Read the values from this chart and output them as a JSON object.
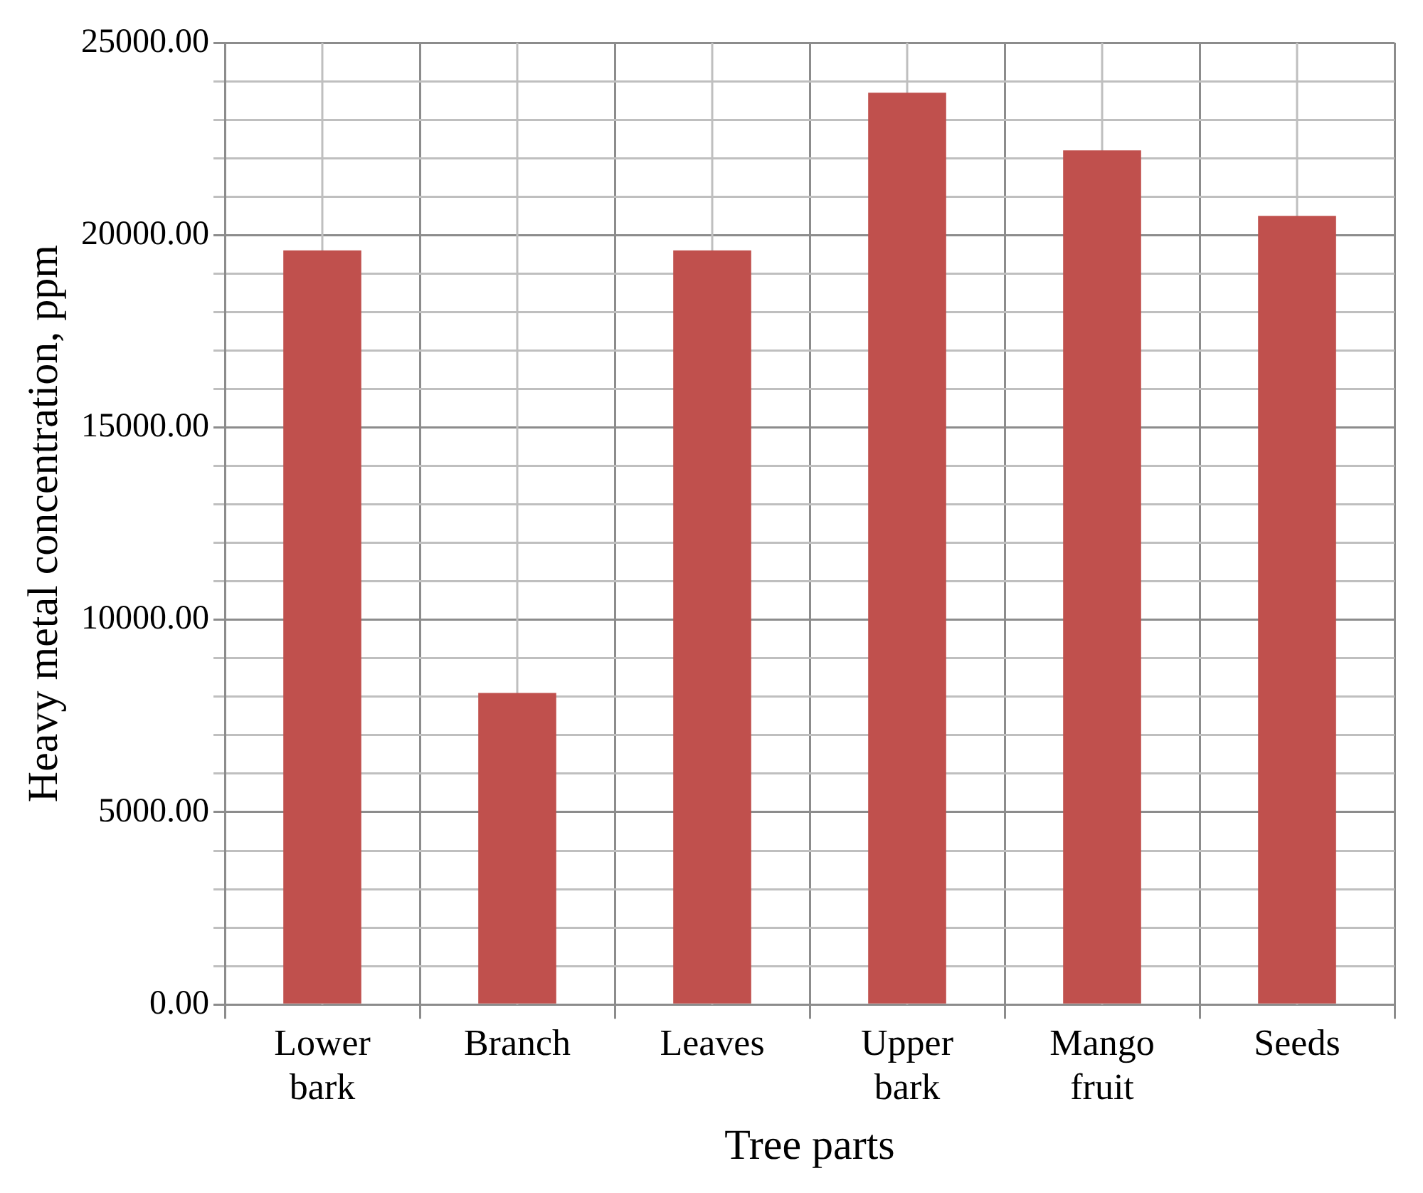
{
  "chart_data": {
    "type": "bar",
    "xlabel": "Tree parts",
    "ylabel": "Heavy metal concentration, ppm",
    "categories": [
      [
        "Lower",
        "bark"
      ],
      "Branch",
      "Leaves",
      [
        "Upper",
        "bark"
      ],
      [
        "Mango",
        "fruit"
      ],
      "Seeds"
    ],
    "values": [
      19600,
      8100,
      19600,
      23700,
      22200,
      20500
    ],
    "color": "#c0504d",
    "ylim": [
      0,
      25000
    ],
    "yticks": [
      {
        "value": 0,
        "label": "0.00"
      },
      {
        "value": 1000,
        "label": null
      },
      {
        "value": 2000,
        "label": null
      },
      {
        "value": 3000,
        "label": null
      },
      {
        "value": 4000,
        "label": null
      },
      {
        "value": 5000,
        "label": "5000.00"
      },
      {
        "value": 6000,
        "label": null
      },
      {
        "value": 7000,
        "label": null
      },
      {
        "value": 8000,
        "label": null
      },
      {
        "value": 9000,
        "label": null
      },
      {
        "value": 10000,
        "label": "10000.00"
      },
      {
        "value": 11000,
        "label": null
      },
      {
        "value": 12000,
        "label": null
      },
      {
        "value": 13000,
        "label": null
      },
      {
        "value": 14000,
        "label": null
      },
      {
        "value": 15000,
        "label": "15000.00"
      },
      {
        "value": 16000,
        "label": null
      },
      {
        "value": 17000,
        "label": null
      },
      {
        "value": 18000,
        "label": null
      },
      {
        "value": 19000,
        "label": null
      },
      {
        "value": 20000,
        "label": "20000.00"
      },
      {
        "value": 21000,
        "label": null
      },
      {
        "value": 22000,
        "label": null
      },
      {
        "value": 23000,
        "label": null
      },
      {
        "value": 24000,
        "label": null
      },
      {
        "value": 25000,
        "label": "25000.00"
      }
    ],
    "grid": true,
    "legend": false
  }
}
